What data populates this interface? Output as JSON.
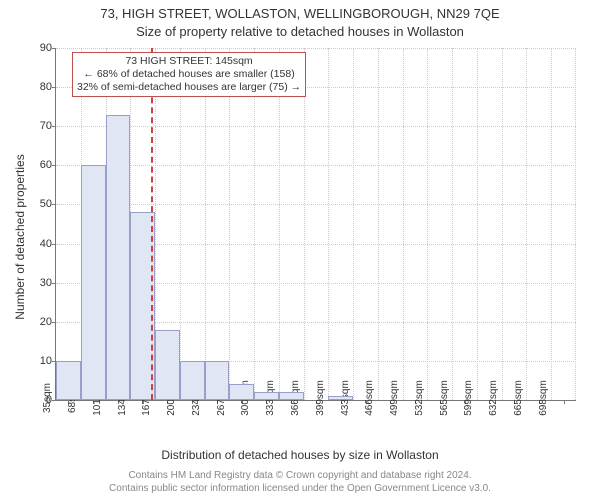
{
  "header": {
    "title": "73, HIGH STREET, WOLLASTON, WELLINGBOROUGH, NN29 7QE",
    "subtitle": "Size of property relative to detached houses in Wollaston"
  },
  "axes": {
    "xlabel": "Distribution of detached houses by size in Wollaston",
    "ylabel": "Number of detached properties"
  },
  "footer": {
    "line1": "Contains HM Land Registry data © Crown copyright and database right 2024.",
    "line2": "Contains public sector information licensed under the Open Government Licence v3.0."
  },
  "chart": {
    "type": "bar",
    "ymax": 90,
    "ytick_step": 10,
    "categories": [
      "35sqm",
      "68sqm",
      "101sqm",
      "134sqm",
      "167sqm",
      "200sqm",
      "234sqm",
      "267sqm",
      "300sqm",
      "333sqm",
      "366sqm",
      "399sqm",
      "433sqm",
      "466sqm",
      "499sqm",
      "532sqm",
      "565sqm",
      "599sqm",
      "632sqm",
      "665sqm",
      "698sqm"
    ],
    "values": [
      10,
      60,
      73,
      48,
      18,
      10,
      10,
      4,
      2,
      2,
      0,
      1,
      0,
      0,
      0,
      0,
      0,
      0,
      0,
      0,
      0
    ],
    "bar_fill": "#e1e6f5",
    "bar_border": "#9a9fc9",
    "grid_color": "#cccccc",
    "background": "#ffffff",
    "marker": {
      "value_position": 145,
      "xmin": 35,
      "xstep": 33,
      "line_color": "#d04040",
      "line_dash": "dashed",
      "callout_border": "#c05050",
      "lines": [
        "73 HIGH STREET: 145sqm",
        "← 68% of detached houses are smaller (158)",
        "32% of semi-detached houses are larger (75) →"
      ]
    }
  }
}
